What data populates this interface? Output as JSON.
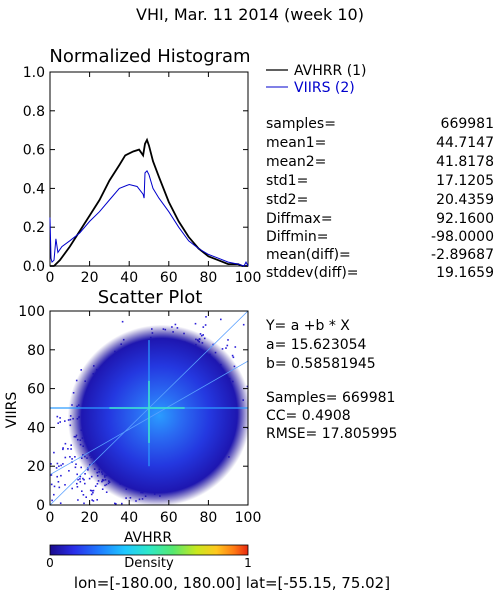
{
  "header": {
    "title": "VHI,  Mar. 11 2014 (week 10)"
  },
  "histogram": {
    "title": "Normalized Histogram",
    "legend": [
      {
        "label": "AVHRR (1)",
        "color": "#000000"
      },
      {
        "label": "VIIRS (2)",
        "color": "#0000cc"
      }
    ],
    "stats": [
      {
        "key": "samples=",
        "value": "669981"
      },
      {
        "key": "mean1=",
        "value": "44.7147"
      },
      {
        "key": "mean2=",
        "value": "41.8178"
      },
      {
        "key": "std1=",
        "value": "17.1205"
      },
      {
        "key": "std2=",
        "value": "20.4359"
      },
      {
        "key": "Diffmax=",
        "value": "92.1600"
      },
      {
        "key": "Diffmin=",
        "value": "-98.0000"
      },
      {
        "key": "mean(diff)=",
        "value": "-2.89687"
      },
      {
        "key": "stddev(diff)=",
        "value": "19.1659"
      }
    ]
  },
  "scatter": {
    "title": "Scatter Plot",
    "regression": {
      "equation": "Y= a +b * X",
      "a": "a= 15.623054",
      "b": "b= 0.58581945",
      "samples": "Samples= 669981",
      "cc": "CC=  0.4908",
      "rmse": "RMSE= 17.805995"
    }
  },
  "colorbar": {
    "label": "Density",
    "min_label": "0",
    "max_label": "1",
    "colors": [
      "#1a0a8c",
      "#2a2ee8",
      "#1f7bff",
      "#1fc8ff",
      "#2ee8c8",
      "#55e870",
      "#c8e81e",
      "#ffc81e",
      "#ff7a14",
      "#e82810"
    ]
  },
  "footer": {
    "text": "lon=[-180.00, 180.00] lat=[-55.15, 75.02]"
  },
  "chart_data": [
    {
      "type": "line",
      "title": "Normalized Histogram",
      "xlim": [
        0,
        100
      ],
      "ylim": [
        0,
        1.0
      ],
      "xticks": [
        "0",
        "20",
        "40",
        "60",
        "80",
        "100"
      ],
      "yticks": [
        "0.0",
        "0.2",
        "0.4",
        "0.6",
        "0.8",
        "1.0"
      ],
      "series": [
        {
          "name": "AVHRR (1)",
          "color": "#000000",
          "x": [
            0,
            2,
            5,
            10,
            15,
            20,
            25,
            30,
            35,
            38,
            42,
            45,
            47,
            48,
            49,
            50,
            52,
            55,
            60,
            65,
            70,
            75,
            80,
            85,
            90,
            95,
            97,
            100
          ],
          "y": [
            0.0,
            0.0,
            0.03,
            0.1,
            0.18,
            0.26,
            0.34,
            0.44,
            0.52,
            0.57,
            0.59,
            0.6,
            0.57,
            0.63,
            0.65,
            0.62,
            0.54,
            0.46,
            0.33,
            0.23,
            0.15,
            0.09,
            0.05,
            0.03,
            0.01,
            0.01,
            0.0,
            0.0
          ]
        },
        {
          "name": "VIIRS (2)",
          "color": "#0000cc",
          "x": [
            0,
            0.5,
            1,
            2,
            3,
            4,
            6,
            10,
            15,
            20,
            25,
            30,
            35,
            40,
            44,
            47,
            47.5,
            48,
            49,
            50,
            52,
            55,
            60,
            65,
            70,
            75,
            80,
            85,
            90,
            95,
            98,
            99,
            100
          ],
          "y": [
            0.25,
            0.04,
            0.02,
            0.03,
            0.14,
            0.07,
            0.1,
            0.13,
            0.17,
            0.23,
            0.28,
            0.34,
            0.4,
            0.42,
            0.41,
            0.37,
            0.35,
            0.48,
            0.49,
            0.47,
            0.4,
            0.35,
            0.28,
            0.2,
            0.13,
            0.09,
            0.06,
            0.04,
            0.02,
            0.01,
            0.0,
            0.02,
            0.0
          ]
        }
      ]
    },
    {
      "type": "scatter",
      "title": "Scatter Plot",
      "xlabel": "AVHRR",
      "ylabel": "VIIRS",
      "xlim": [
        0,
        100
      ],
      "ylim": [
        0,
        100
      ],
      "xticks": [
        "0",
        "20",
        "40",
        "60",
        "80",
        "100"
      ],
      "yticks": [
        "0",
        "20",
        "40",
        "60",
        "80",
        "100"
      ],
      "points_description": "density scatter of 669981 samples, dense core near (45,45)",
      "fit_line": {
        "intercept": 15.623054,
        "slope": 0.58581945
      }
    }
  ]
}
